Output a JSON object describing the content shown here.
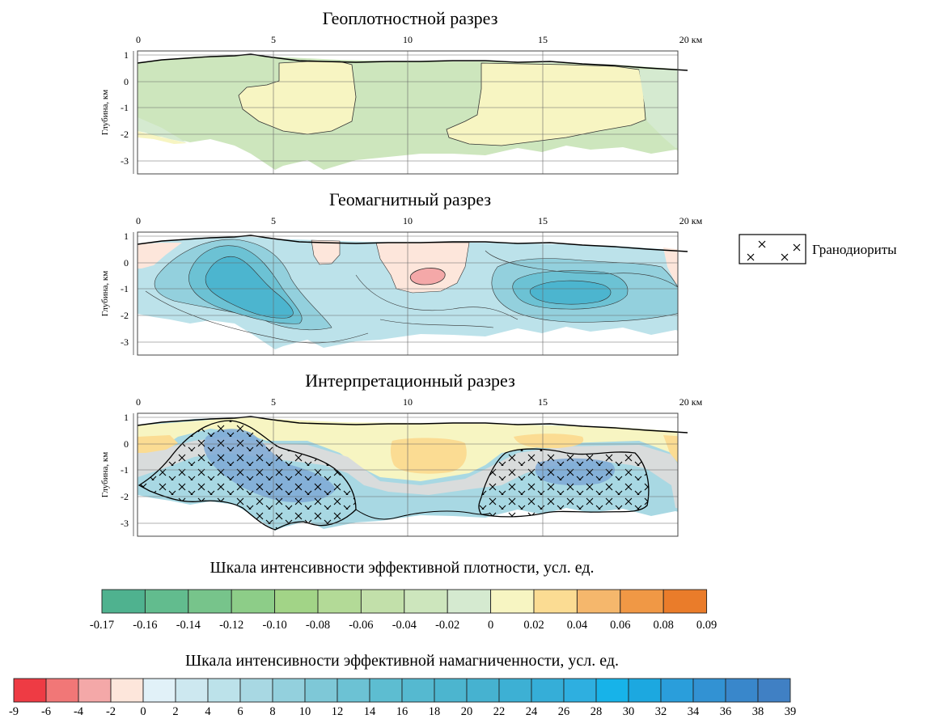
{
  "panels": [
    {
      "id": "density",
      "title": "Геоплотностной разрез"
    },
    {
      "id": "magnetic",
      "title": "Геомагнитный разрез"
    },
    {
      "id": "interpretation",
      "title": "Интерпретационный разрез"
    }
  ],
  "axes": {
    "x_ticks": [
      "0",
      "5",
      "10",
      "15",
      "20 км"
    ],
    "y_ticks": [
      "1",
      "0",
      "-1",
      "-2",
      "-3"
    ],
    "y_label": "Глубина, км"
  },
  "legend": {
    "label": "Гранодиориты"
  },
  "density_scale": {
    "title": "Шкала интенсивности эффективной плотности, усл. ед.",
    "labels": [
      "-0.17",
      "-0.16",
      "-0.14",
      "-0.12",
      "-0.10",
      "-0.08",
      "-0.06",
      "-0.04",
      "-0.02",
      "0",
      "0.02",
      "0.04",
      "0.06",
      "0.08",
      "0.09"
    ],
    "colors": [
      "#4fb28f",
      "#62bc8e",
      "#77c48b",
      "#8dcd88",
      "#a2d487",
      "#b3da97",
      "#c2e0aa",
      "#cde6bd",
      "#d5ead0",
      "#f7f5c2",
      "#fbdc93",
      "#f5b76c",
      "#f09845",
      "#ea7c2a"
    ]
  },
  "magnet_scale": {
    "title": "Шкала интенсивности эффективной намагниченности, усл. ед.",
    "labels": [
      "-9",
      "-6",
      "-4",
      "-2",
      "0",
      "2",
      "4",
      "6",
      "8",
      "10",
      "12",
      "14",
      "16",
      "18",
      "20",
      "22",
      "24",
      "26",
      "28",
      "30",
      "32",
      "34",
      "36",
      "38",
      "39"
    ],
    "colors": [
      "#ee3b44",
      "#f17777",
      "#f4a8a8",
      "#fde6db",
      "#e1f1f8",
      "#cde8f0",
      "#bce2ea",
      "#a8d8e3",
      "#93d0dd",
      "#7ec8d7",
      "#6cc2d4",
      "#5dbdd1",
      "#55b9d0",
      "#4cb5cf",
      "#46b2d0",
      "#3db0d4",
      "#35aed8",
      "#2eafe0",
      "#17b3e9",
      "#1ca8e0",
      "#2a9edb",
      "#3292d3",
      "#3987cb",
      "#4080c4"
    ]
  },
  "chart_data": [
    {
      "type": "heatmap",
      "title": "Геоплотностной разрез",
      "ylabel": "Глубина, км",
      "xlim": [
        0,
        20.5
      ],
      "ylim": [
        -3.3,
        1.1
      ],
      "x_ticks": [
        0,
        5,
        10,
        15,
        20
      ],
      "y_ticks": [
        1,
        0,
        -1,
        -2,
        -3
      ],
      "x_unit": "км",
      "grid": true,
      "zones": [
        "background -0.04",
        "-0.02 … 0 (x≈0–3.8)",
        "0.02 bodies at x≈3.8–8, x≈11.5–19"
      ]
    },
    {
      "type": "heatmap",
      "title": "Геомагнитный разрез",
      "ylabel": "Глубина, км",
      "xlim": [
        0,
        20.5
      ],
      "ylim": [
        -3.3,
        1.1
      ],
      "x_ticks": [
        0,
        5,
        10,
        15,
        20
      ],
      "y_ticks": [
        1,
        0,
        -1,
        -2,
        -3
      ],
      "x_unit": "км",
      "grid": true,
      "zones": [
        "maxima ≈12–14 at x≈4–7 and x≈15–17, depth ≈ -1…-1.5",
        "minimum ≈ -4 at x≈10.5, depth ≈ -0.5"
      ]
    },
    {
      "type": "heatmap",
      "title": "Интерпретационный разрез",
      "ylabel": "Глубина, км",
      "xlim": [
        0,
        20.5
      ],
      "ylim": [
        -3.3,
        1.1
      ],
      "x_ticks": [
        0,
        5,
        10,
        15,
        20
      ],
      "y_ticks": [
        1,
        0,
        -1,
        -2,
        -3
      ],
      "x_unit": "км",
      "grid": true,
      "zones": [
        "Гранодиориты: x≈0–8, x≈12.5–19"
      ]
    }
  ]
}
